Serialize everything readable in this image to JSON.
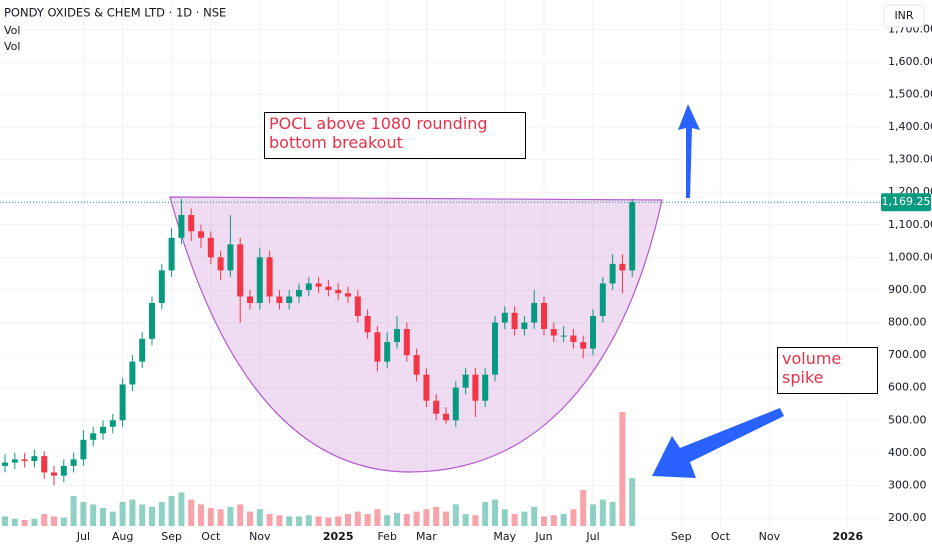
{
  "chart_data": {
    "type": "candlestick",
    "title": "PONDY OXIDES & CHEM LTD · 1D · NSE",
    "indicators": [
      "Vol",
      "Vol"
    ],
    "currency": "INR",
    "categories": [
      null,
      null,
      null,
      null,
      null,
      null,
      null,
      null,
      "Jul",
      null,
      null,
      null,
      "Aug",
      null,
      null,
      null,
      null,
      "Sep",
      null,
      null,
      null,
      "Oct",
      null,
      null,
      null,
      null,
      "Nov",
      null,
      null,
      null,
      null,
      null,
      null,
      null,
      "2025",
      null,
      null,
      null,
      null,
      "Feb",
      null,
      null,
      null,
      "Mar",
      null,
      null,
      null,
      null,
      null,
      null,
      null,
      "May",
      null,
      null,
      null,
      "Jun",
      null,
      null,
      null,
      null,
      "Jul",
      null,
      null,
      null,
      null,
      null,
      null,
      null,
      null,
      "Sep",
      null,
      null,
      null,
      "Oct",
      null,
      null,
      null,
      null,
      "Nov",
      null,
      null,
      null,
      null,
      null,
      null,
      null,
      "2026",
      null
    ],
    "open": [
      360,
      370,
      380,
      375,
      390,
      340,
      330,
      360,
      380,
      440,
      460,
      480,
      500,
      610,
      680,
      750,
      860,
      960,
      1060,
      1130,
      1080,
      1060,
      1000,
      960,
      1040,
      880,
      860,
      1000,
      880,
      860,
      880,
      900,
      920,
      910,
      900,
      890,
      880,
      820,
      770,
      680,
      740,
      780,
      700,
      640,
      560,
      520,
      500,
      600,
      640,
      560,
      640,
      800,
      830,
      780,
      800,
      860,
      780,
      760,
      760,
      740,
      720,
      820,
      920,
      980,
      960,
      null,
      null,
      null,
      null,
      null,
      null,
      null,
      null,
      null,
      null,
      null,
      null,
      null,
      null,
      null,
      null,
      null,
      null,
      null,
      null,
      null,
      null,
      null
    ],
    "high": [
      395,
      400,
      400,
      410,
      405,
      360,
      380,
      400,
      470,
      480,
      500,
      520,
      630,
      700,
      770,
      880,
      980,
      1090,
      1180,
      1150,
      1100,
      1080,
      1020,
      1130,
      1060,
      900,
      1030,
      1020,
      900,
      900,
      920,
      940,
      940,
      930,
      920,
      910,
      900,
      840,
      790,
      770,
      820,
      800,
      720,
      660,
      580,
      540,
      620,
      660,
      660,
      660,
      820,
      850,
      850,
      820,
      900,
      880,
      800,
      790,
      780,
      760,
      840,
      940,
      1010,
      1010,
      1180,
      null,
      null,
      null,
      null,
      null,
      null,
      null,
      null,
      null,
      null,
      null,
      null,
      null,
      null,
      null,
      null,
      null,
      null,
      null,
      null,
      null,
      null,
      null
    ],
    "low": [
      340,
      350,
      355,
      355,
      320,
      300,
      310,
      340,
      360,
      420,
      440,
      460,
      480,
      590,
      660,
      730,
      840,
      940,
      1040,
      1050,
      1030,
      980,
      930,
      940,
      800,
      840,
      840,
      860,
      840,
      840,
      860,
      880,
      890,
      880,
      870,
      860,
      800,
      750,
      650,
      660,
      720,
      680,
      620,
      540,
      500,
      490,
      480,
      580,
      510,
      540,
      620,
      780,
      760,
      760,
      780,
      760,
      740,
      740,
      720,
      690,
      700,
      800,
      900,
      890,
      940,
      null,
      null,
      null,
      null,
      null,
      null,
      null,
      null,
      null,
      null,
      null,
      null,
      null,
      null,
      null,
      null,
      null,
      null,
      null,
      null,
      null,
      null,
      null
    ],
    "close": [
      370,
      380,
      375,
      390,
      340,
      330,
      360,
      380,
      440,
      460,
      480,
      500,
      610,
      680,
      750,
      860,
      960,
      1060,
      1130,
      1080,
      1060,
      1000,
      960,
      1040,
      880,
      860,
      1000,
      880,
      860,
      880,
      900,
      920,
      910,
      900,
      890,
      880,
      820,
      770,
      680,
      740,
      780,
      700,
      640,
      560,
      520,
      500,
      600,
      640,
      560,
      640,
      800,
      830,
      780,
      800,
      860,
      780,
      760,
      760,
      740,
      720,
      820,
      920,
      980,
      960,
      1169.25,
      null,
      null,
      null,
      null,
      null,
      null,
      null,
      null,
      null,
      null,
      null,
      null,
      null,
      null,
      null,
      null,
      null,
      null,
      null,
      null,
      null,
      null,
      null
    ],
    "volume": [
      8,
      6,
      5,
      6,
      10,
      8,
      7,
      25,
      20,
      18,
      15,
      12,
      20,
      22,
      18,
      16,
      20,
      25,
      28,
      22,
      18,
      15,
      14,
      16,
      18,
      12,
      14,
      10,
      9,
      8,
      8,
      9,
      8,
      7,
      8,
      10,
      12,
      10,
      14,
      9,
      11,
      10,
      12,
      14,
      16,
      12,
      18,
      10,
      9,
      20,
      22,
      14,
      10,
      12,
      16,
      8,
      9,
      10,
      14,
      30,
      18,
      22,
      20,
      95,
      40,
      null,
      null,
      null,
      null,
      null,
      null,
      null,
      null,
      null,
      null,
      null,
      null,
      null,
      null,
      null,
      null,
      null,
      null,
      null,
      null,
      null,
      null,
      null
    ],
    "up_color": "#089981",
    "down_color": "#f23645",
    "ylim": [
      200,
      1790
    ],
    "yticks": [
      {
        "value": 200,
        "label": "200.00"
      },
      {
        "value": 300,
        "label": "300.00"
      },
      {
        "value": 400,
        "label": "400.00"
      },
      {
        "value": 500,
        "label": "500.00"
      },
      {
        "value": 600,
        "label": "600.00"
      },
      {
        "value": 700,
        "label": "700.00"
      },
      {
        "value": 800,
        "label": "800.00"
      },
      {
        "value": 900,
        "label": "900.00"
      },
      {
        "value": 1000,
        "label": "1,000.00"
      },
      {
        "value": 1100,
        "label": "1,100.00"
      },
      {
        "value": 1200,
        "label": "1,200.00"
      },
      {
        "value": 1300,
        "label": "1,300.00"
      },
      {
        "value": 1400,
        "label": "1,400.00"
      },
      {
        "value": 1500,
        "label": "1,500.00"
      },
      {
        "value": 1600,
        "label": "1,600.00"
      },
      {
        "value": 1700,
        "label": "1,700.00"
      }
    ],
    "y2lim": [
      0,
      100
    ],
    "grid": true,
    "last_price": {
      "value": 1169.25,
      "label": "1,169.25"
    },
    "annotations": [
      "POCL above 1080 rounding bottom breakout",
      "volume spike"
    ]
  }
}
